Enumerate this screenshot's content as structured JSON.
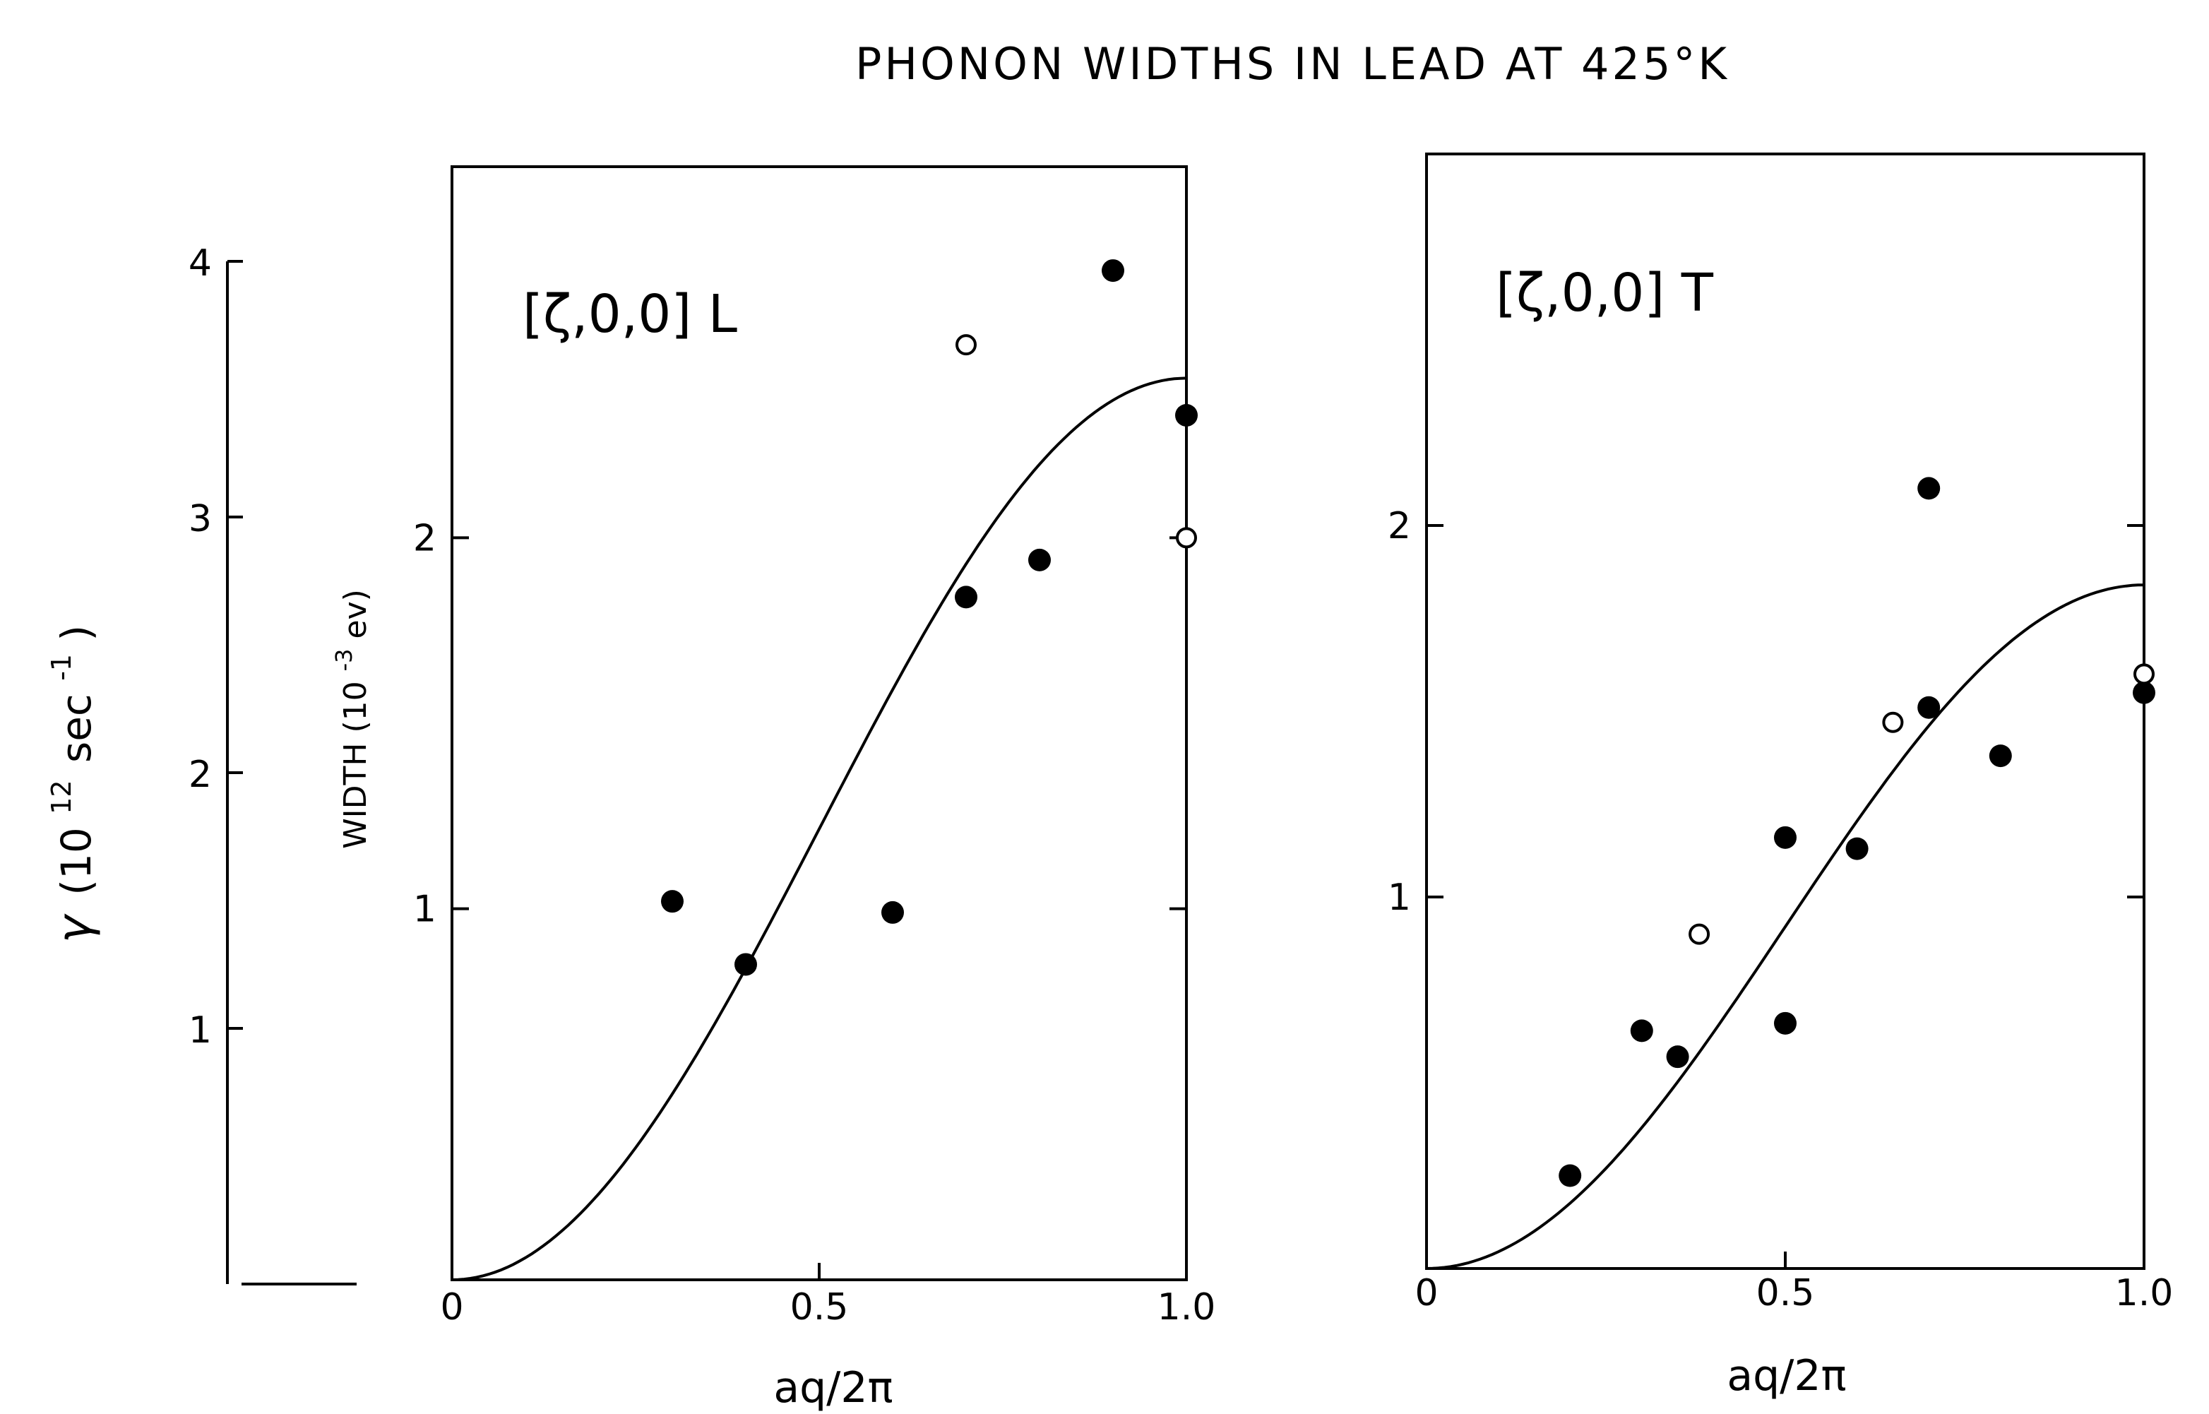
{
  "title": "PHONON WIDTHS IN LEAD AT 425°K",
  "left_axis": {
    "label_symbol": "γ",
    "label_unit": "(10",
    "label_exp": "12",
    "label_rest": "sec",
    "label_exp2": "-1",
    "label_close": ")",
    "ticks": [
      "1",
      "2",
      "3",
      "4"
    ]
  },
  "chart_data": [
    {
      "type": "scatter",
      "panel_label": "[ζ,0,0] L",
      "xlabel": "aq/2π",
      "ylabel": "WIDTH (10",
      "ylabel_exp": "-3",
      "ylabel_rest": "ev)",
      "xlim": [
        0,
        1.0
      ],
      "ylim": [
        0,
        3.0
      ],
      "xticks": [
        "0",
        "0.5",
        "1.0"
      ],
      "yticks": [
        "1",
        "2"
      ],
      "filled_points": [
        [
          0.3,
          1.02
        ],
        [
          0.4,
          0.85
        ],
        [
          0.6,
          0.99
        ],
        [
          0.7,
          1.84
        ],
        [
          0.8,
          1.94
        ],
        [
          0.9,
          2.72
        ],
        [
          1.0,
          2.33
        ]
      ],
      "open_points": [
        [
          0.7,
          2.52
        ],
        [
          1.0,
          2.0
        ]
      ],
      "curve_peak": 2.43
    },
    {
      "type": "scatter",
      "panel_label": "[ζ,0,0] T",
      "xlabel": "aq/2π",
      "xlim": [
        0,
        1.0
      ],
      "ylim": [
        0,
        3.0
      ],
      "xticks": [
        "0",
        "0.5",
        "1.0"
      ],
      "yticks": [
        "1",
        "2"
      ],
      "filled_points": [
        [
          0.2,
          0.25
        ],
        [
          0.3,
          0.64
        ],
        [
          0.35,
          0.57
        ],
        [
          0.5,
          1.16
        ],
        [
          0.5,
          0.66
        ],
        [
          0.6,
          1.13
        ],
        [
          0.7,
          2.1
        ],
        [
          0.7,
          1.51
        ],
        [
          0.8,
          1.38
        ],
        [
          1.0,
          1.55
        ]
      ],
      "open_points": [
        [
          0.38,
          0.9
        ],
        [
          0.65,
          1.47
        ],
        [
          1.0,
          1.6
        ]
      ],
      "curve_peak": 1.84
    }
  ]
}
